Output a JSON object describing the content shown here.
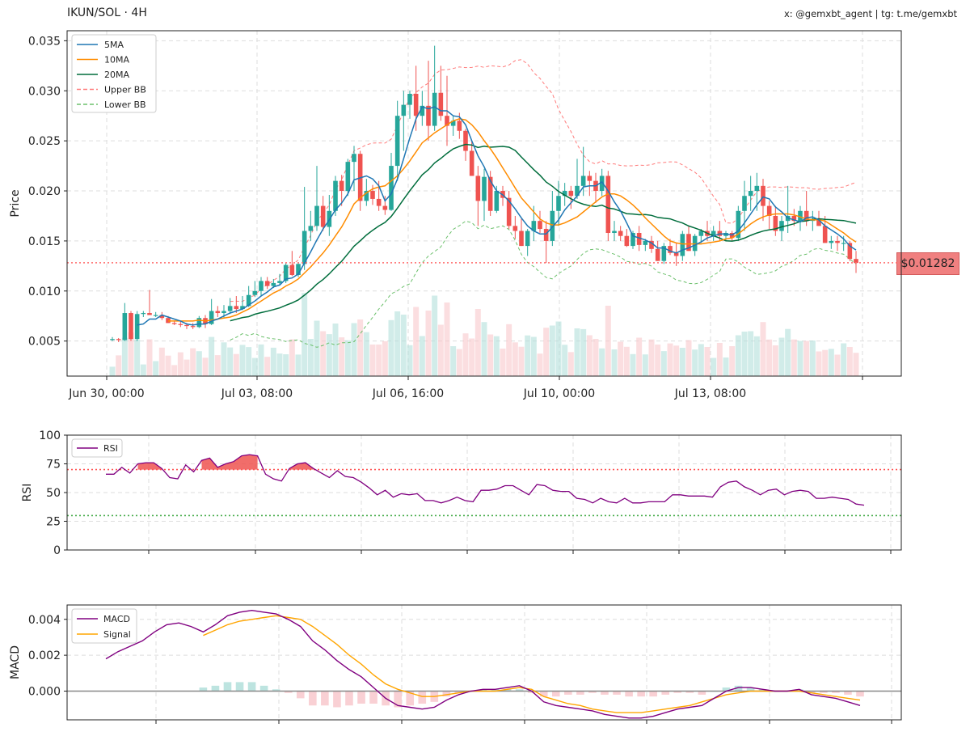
{
  "header": {
    "title": "IKUN/SOL · 4H",
    "credit": "x: @gemxbt_agent | tg: t.me/gemxbt"
  },
  "last_price_label": "$0.01282",
  "colors": {
    "up": "#26a69a",
    "down": "#ef5350",
    "ma5": "#1f77b4",
    "ma10": "#ff8c00",
    "ma20": "#006d3c",
    "upper_bb": "#ff7b7b",
    "lower_bb": "#6cc06c",
    "rsi": "#800080",
    "macd": "#800080",
    "signal": "#ffa500",
    "overbought": "#ff5555",
    "oversold": "#4caf50"
  },
  "chart_data": [
    {
      "type": "candlestick",
      "ylabel": "Price",
      "ylim": [
        0.0015,
        0.036
      ],
      "yticks": [
        "0.005",
        "0.010",
        "0.015",
        "0.020",
        "0.025",
        "0.030",
        "0.035"
      ],
      "xticks": [
        "Jun 30, 00:00",
        "Jul 03, 08:00",
        "Jul 06, 16:00",
        "Jul 10, 00:00",
        "Jul 13, 08:00"
      ],
      "legend": [
        "5MA",
        "10MA",
        "20MA",
        "Upper BB",
        "Lower BB"
      ],
      "last_price": 0.01282,
      "ohlc": [
        [
          0.0052,
          0.0054,
          0.005,
          0.0052
        ],
        [
          0.0052,
          0.0053,
          0.0049,
          0.0051
        ],
        [
          0.0051,
          0.0088,
          0.005,
          0.0078
        ],
        [
          0.0078,
          0.008,
          0.005,
          0.0052
        ],
        [
          0.0052,
          0.008,
          0.005,
          0.0077
        ],
        [
          0.0077,
          0.008,
          0.0074,
          0.0078
        ],
        [
          0.0078,
          0.0101,
          0.0076,
          0.0076
        ],
        [
          0.0076,
          0.0079,
          0.0074,
          0.0076
        ],
        [
          0.0076,
          0.0079,
          0.0071,
          0.0073
        ],
        [
          0.0073,
          0.0075,
          0.0068,
          0.0068
        ],
        [
          0.0068,
          0.007,
          0.0066,
          0.0067
        ],
        [
          0.0067,
          0.007,
          0.0064,
          0.0066
        ],
        [
          0.0066,
          0.0068,
          0.0062,
          0.0065
        ],
        [
          0.0065,
          0.0068,
          0.0062,
          0.0064
        ],
        [
          0.0064,
          0.0075,
          0.0063,
          0.0073
        ],
        [
          0.0073,
          0.0076,
          0.0063,
          0.0067
        ],
        [
          0.0067,
          0.0092,
          0.0066,
          0.008
        ],
        [
          0.008,
          0.0085,
          0.0074,
          0.0078
        ],
        [
          0.0078,
          0.0086,
          0.0073,
          0.008
        ],
        [
          0.008,
          0.0093,
          0.0077,
          0.0085
        ],
        [
          0.0085,
          0.0095,
          0.0078,
          0.0082
        ],
        [
          0.0082,
          0.0095,
          0.0081,
          0.0085
        ],
        [
          0.0085,
          0.0105,
          0.0084,
          0.0096
        ],
        [
          0.0096,
          0.011,
          0.0094,
          0.01
        ],
        [
          0.01,
          0.0114,
          0.0095,
          0.011
        ],
        [
          0.011,
          0.0114,
          0.0102,
          0.0105
        ],
        [
          0.0105,
          0.0112,
          0.0103,
          0.0108
        ],
        [
          0.0108,
          0.0117,
          0.0106,
          0.011
        ],
        [
          0.011,
          0.0128,
          0.0108,
          0.0126
        ],
        [
          0.0126,
          0.014,
          0.0115,
          0.0116
        ],
        [
          0.0116,
          0.0128,
          0.0114,
          0.0127
        ],
        [
          0.0127,
          0.0204,
          0.0121,
          0.016
        ],
        [
          0.016,
          0.018,
          0.015,
          0.0165
        ],
        [
          0.0165,
          0.0225,
          0.016,
          0.0185
        ],
        [
          0.0185,
          0.0195,
          0.016,
          0.0164
        ],
        [
          0.0164,
          0.0196,
          0.0155,
          0.018
        ],
        [
          0.018,
          0.0215,
          0.0175,
          0.021
        ],
        [
          0.021,
          0.0216,
          0.0185,
          0.02
        ],
        [
          0.02,
          0.0232,
          0.0195,
          0.0229
        ],
        [
          0.0229,
          0.0245,
          0.02,
          0.0237
        ],
        [
          0.0237,
          0.024,
          0.018,
          0.019
        ],
        [
          0.019,
          0.0212,
          0.0185,
          0.02
        ],
        [
          0.02,
          0.0206,
          0.0186,
          0.0192
        ],
        [
          0.0192,
          0.021,
          0.018,
          0.0185
        ],
        [
          0.0185,
          0.0195,
          0.0176,
          0.0181
        ],
        [
          0.0181,
          0.0238,
          0.018,
          0.0225
        ],
        [
          0.0225,
          0.029,
          0.021,
          0.0275
        ],
        [
          0.0275,
          0.03,
          0.024,
          0.0286
        ],
        [
          0.0286,
          0.03,
          0.0272,
          0.0297
        ],
        [
          0.0297,
          0.0325,
          0.026,
          0.0275
        ],
        [
          0.0275,
          0.03,
          0.0265,
          0.0285
        ],
        [
          0.0285,
          0.033,
          0.025,
          0.0265
        ],
        [
          0.0265,
          0.0345,
          0.026,
          0.0298
        ],
        [
          0.0298,
          0.0325,
          0.027,
          0.0275
        ],
        [
          0.0275,
          0.0315,
          0.0245,
          0.0265
        ],
        [
          0.0265,
          0.0275,
          0.0255,
          0.027
        ],
        [
          0.027,
          0.0278,
          0.0252,
          0.026
        ],
        [
          0.026,
          0.0262,
          0.023,
          0.024
        ],
        [
          0.024,
          0.025,
          0.0215,
          0.0215
        ],
        [
          0.0215,
          0.0225,
          0.0165,
          0.019
        ],
        [
          0.019,
          0.0222,
          0.017,
          0.0214
        ],
        [
          0.0214,
          0.022,
          0.0175,
          0.018
        ],
        [
          0.018,
          0.0205,
          0.0178,
          0.02
        ],
        [
          0.02,
          0.0205,
          0.0185,
          0.0193
        ],
        [
          0.0193,
          0.02,
          0.0162,
          0.0165
        ],
        [
          0.0165,
          0.0175,
          0.0152,
          0.016
        ],
        [
          0.016,
          0.0172,
          0.0145,
          0.0145
        ],
        [
          0.0145,
          0.0162,
          0.0135,
          0.016
        ],
        [
          0.016,
          0.0185,
          0.015,
          0.017
        ],
        [
          0.017,
          0.018,
          0.0158,
          0.0162
        ],
        [
          0.0162,
          0.017,
          0.0128,
          0.015
        ],
        [
          0.015,
          0.02,
          0.0145,
          0.018
        ],
        [
          0.018,
          0.021,
          0.0165,
          0.0195
        ],
        [
          0.0195,
          0.0208,
          0.0185,
          0.02
        ],
        [
          0.02,
          0.0205,
          0.0182,
          0.0195
        ],
        [
          0.0195,
          0.0232,
          0.0192,
          0.0205
        ],
        [
          0.0205,
          0.0244,
          0.0195,
          0.0215
        ],
        [
          0.0215,
          0.022,
          0.0195,
          0.021
        ],
        [
          0.021,
          0.0218,
          0.0188,
          0.02
        ],
        [
          0.02,
          0.0222,
          0.0195,
          0.0215
        ],
        [
          0.0215,
          0.022,
          0.015,
          0.0158
        ],
        [
          0.0158,
          0.017,
          0.015,
          0.016
        ],
        [
          0.016,
          0.0165,
          0.015,
          0.0155
        ],
        [
          0.0155,
          0.0162,
          0.0144,
          0.0145
        ],
        [
          0.0145,
          0.016,
          0.0142,
          0.0158
        ],
        [
          0.0158,
          0.0165,
          0.014,
          0.0146
        ],
        [
          0.0146,
          0.0152,
          0.014,
          0.015
        ],
        [
          0.015,
          0.0155,
          0.0138,
          0.0142
        ],
        [
          0.0142,
          0.015,
          0.013,
          0.013
        ],
        [
          0.013,
          0.0148,
          0.0127,
          0.0145
        ],
        [
          0.0145,
          0.0152,
          0.0136,
          0.0138
        ],
        [
          0.0138,
          0.0148,
          0.0125,
          0.0135
        ],
        [
          0.0135,
          0.016,
          0.013,
          0.0157
        ],
        [
          0.0157,
          0.0165,
          0.014,
          0.014
        ],
        [
          0.014,
          0.0157,
          0.0135,
          0.0155
        ],
        [
          0.0155,
          0.0162,
          0.0148,
          0.016
        ],
        [
          0.016,
          0.017,
          0.015,
          0.0155
        ],
        [
          0.0155,
          0.0165,
          0.015,
          0.016
        ],
        [
          0.016,
          0.017,
          0.015,
          0.0155
        ],
        [
          0.0155,
          0.016,
          0.015,
          0.0158
        ],
        [
          0.0158,
          0.016,
          0.015,
          0.0153
        ],
        [
          0.0153,
          0.0185,
          0.015,
          0.018
        ],
        [
          0.018,
          0.021,
          0.016,
          0.0195
        ],
        [
          0.0195,
          0.0215,
          0.018,
          0.02
        ],
        [
          0.02,
          0.0218,
          0.018,
          0.0205
        ],
        [
          0.0205,
          0.0212,
          0.017,
          0.0185
        ],
        [
          0.0185,
          0.019,
          0.0162,
          0.0175
        ],
        [
          0.0175,
          0.0185,
          0.0155,
          0.016
        ],
        [
          0.016,
          0.0175,
          0.015,
          0.017
        ],
        [
          0.017,
          0.0205,
          0.0158,
          0.0175
        ],
        [
          0.0175,
          0.0182,
          0.0165,
          0.017
        ],
        [
          0.017,
          0.0185,
          0.016,
          0.018
        ],
        [
          0.018,
          0.02,
          0.0165,
          0.017
        ],
        [
          0.017,
          0.018,
          0.016,
          0.0172
        ],
        [
          0.0172,
          0.018,
          0.0165,
          0.0165
        ],
        [
          0.0165,
          0.0175,
          0.0148,
          0.0148
        ],
        [
          0.0148,
          0.0155,
          0.0142,
          0.015
        ],
        [
          0.015,
          0.0155,
          0.014,
          0.0148
        ],
        [
          0.0148,
          0.0155,
          0.014,
          0.0148
        ],
        [
          0.0148,
          0.015,
          0.013,
          0.0132
        ],
        [
          0.0132,
          0.014,
          0.0118,
          0.0128
        ]
      ],
      "ma5": [
        null,
        null,
        null,
        null,
        0.0066,
        0.0067,
        0.0072,
        0.0072,
        0.0076,
        0.0074,
        0.0072,
        0.007,
        0.0067,
        0.0066,
        0.0067,
        0.0067,
        0.007,
        0.0072,
        0.0075,
        0.0078,
        0.008,
        0.0082,
        0.0086,
        0.009,
        0.0095,
        0.0099,
        0.0104,
        0.0106,
        0.0112,
        0.0113,
        0.0117,
        0.0128,
        0.0139,
        0.0151,
        0.0162,
        0.0171,
        0.0181,
        0.0188,
        0.0197,
        0.0211,
        0.0213,
        0.0215,
        0.0212,
        0.0205,
        0.019,
        0.0197,
        0.0212,
        0.0232,
        0.0253,
        0.0272,
        0.0284,
        0.0282,
        0.0284,
        0.028,
        0.028,
        0.0275,
        0.0274,
        0.0266,
        0.025,
        0.0235,
        0.0224,
        0.021,
        0.02,
        0.0196,
        0.019,
        0.0182,
        0.0173,
        0.0165,
        0.016,
        0.0157,
        0.0157,
        0.0164,
        0.0171,
        0.0181,
        0.0188,
        0.0195,
        0.0204,
        0.0205,
        0.0205,
        0.0209,
        0.02,
        0.0189,
        0.018,
        0.0168,
        0.0155,
        0.0153,
        0.0151,
        0.0148,
        0.0143,
        0.0143,
        0.014,
        0.0138,
        0.0141,
        0.0143,
        0.0146,
        0.0149,
        0.0153,
        0.0155,
        0.0157,
        0.0157,
        0.0156,
        0.016,
        0.0168,
        0.0177,
        0.0186,
        0.0194,
        0.0192,
        0.0184,
        0.0179,
        0.0173,
        0.0171,
        0.0169,
        0.0173,
        0.0174,
        0.0171,
        0.0165,
        0.0161,
        0.0157,
        0.0152,
        0.0145,
        0.0141
      ],
      "ma10": [
        null,
        null,
        null,
        null,
        null,
        null,
        null,
        null,
        null,
        0.007,
        0.007,
        0.007,
        0.007,
        0.007,
        0.0071,
        0.007,
        0.0071,
        0.0072,
        0.0073,
        0.0074,
        0.0076,
        0.0079,
        0.0082,
        0.0086,
        0.009,
        0.0094,
        0.0098,
        0.0101,
        0.0105,
        0.0108,
        0.0112,
        0.0118,
        0.0124,
        0.0131,
        0.0138,
        0.0146,
        0.0155,
        0.0164,
        0.0175,
        0.0187,
        0.0193,
        0.0198,
        0.0202,
        0.0204,
        0.0205,
        0.021,
        0.0215,
        0.0222,
        0.023,
        0.0239,
        0.0248,
        0.0253,
        0.0258,
        0.0262,
        0.0266,
        0.027,
        0.0272,
        0.0271,
        0.0266,
        0.0259,
        0.025,
        0.0242,
        0.0233,
        0.0223,
        0.0213,
        0.0203,
        0.0193,
        0.0186,
        0.0179,
        0.0172,
        0.0168,
        0.0166,
        0.0166,
        0.0168,
        0.0171,
        0.0174,
        0.0179,
        0.0184,
        0.0189,
        0.0194,
        0.0197,
        0.0197,
        0.0195,
        0.0191,
        0.0186,
        0.018,
        0.0173,
        0.0167,
        0.0161,
        0.0155,
        0.015,
        0.0148,
        0.0147,
        0.0147,
        0.0147,
        0.0147,
        0.0148,
        0.0149,
        0.015,
        0.0152,
        0.0153,
        0.0157,
        0.0162,
        0.0167,
        0.0171,
        0.0174,
        0.0176,
        0.0177,
        0.0177,
        0.0177,
        0.0176,
        0.0174,
        0.0172,
        0.0171,
        0.0171,
        0.017,
        0.0166,
        0.0162,
        0.0158,
        0.0153,
        0.0149
      ]
    },
    {
      "type": "line",
      "ylabel": "RSI",
      "ylim": [
        0,
        100
      ],
      "yticks": [
        "0",
        "25",
        "50",
        "75",
        "100"
      ],
      "legend": [
        "RSI"
      ],
      "overbought": 70,
      "oversold": 30,
      "values": [
        66,
        66,
        72,
        67,
        75,
        76,
        76,
        71,
        63,
        62,
        74,
        68,
        78,
        80,
        72,
        75,
        77,
        82,
        83,
        82,
        66,
        62,
        60,
        71,
        75,
        76,
        71,
        67,
        63,
        69,
        64,
        63,
        59,
        54,
        48,
        52,
        46,
        49,
        48,
        49,
        43,
        43,
        41,
        43,
        46,
        43,
        42,
        52,
        52,
        53,
        56,
        56,
        52,
        48,
        57,
        56,
        52,
        51,
        51,
        45,
        44,
        41,
        45,
        42,
        41,
        45,
        41,
        41,
        42,
        42,
        42,
        48,
        48,
        47,
        47,
        47,
        46,
        55,
        59,
        60,
        55,
        52,
        48,
        52,
        53,
        48,
        51,
        52,
        51,
        45,
        45,
        46,
        45,
        44,
        40,
        39
      ]
    },
    {
      "type": "line",
      "ylabel": "MACD",
      "ylim": [
        -0.0016,
        0.0048
      ],
      "yticks": [
        "0.000",
        "0.002",
        "0.004"
      ],
      "legend": [
        "MACD",
        "Signal"
      ],
      "macd": [
        0.0018,
        0.0022,
        0.0025,
        0.0028,
        0.0033,
        0.0037,
        0.0038,
        0.0036,
        0.0033,
        0.0037,
        0.0042,
        0.0044,
        0.0045,
        0.0044,
        0.0043,
        0.004,
        0.0036,
        0.0028,
        0.0023,
        0.0017,
        0.0012,
        0.0008,
        0.0002,
        -0.0004,
        -0.0008,
        -0.0009,
        -0.001,
        -0.0009,
        -0.0005,
        -0.0002,
        0.0,
        0.0001,
        0.0001,
        0.0002,
        0.0003,
        0.0,
        -0.0006,
        -0.0008,
        -0.0009,
        -0.001,
        -0.0011,
        -0.0013,
        -0.0014,
        -0.0015,
        -0.0015,
        -0.0014,
        -0.0012,
        -0.001,
        -0.0009,
        -0.0008,
        -0.0004,
        0.0,
        0.0002,
        0.0002,
        0.0001,
        0.0,
        0.0,
        0.0001,
        -0.0002,
        -0.0003,
        -0.0004,
        -0.0006,
        -0.0008
      ],
      "signal": [
        null,
        null,
        null,
        null,
        null,
        null,
        null,
        null,
        0.0031,
        0.0034,
        0.0037,
        0.0039,
        0.004,
        0.0041,
        0.0042,
        0.0041,
        0.004,
        0.0036,
        0.0031,
        0.0026,
        0.002,
        0.0015,
        0.0009,
        0.0004,
        0.0001,
        -0.0001,
        -0.0003,
        -0.0003,
        -0.0002,
        -0.0001,
        0.0,
        0.0,
        0.0,
        0.0001,
        0.0002,
        0.0001,
        -0.0003,
        -0.0005,
        -0.0007,
        -0.0008,
        -0.001,
        -0.0011,
        -0.0012,
        -0.0012,
        -0.0012,
        -0.0011,
        -0.001,
        -0.0009,
        -0.0008,
        -0.0006,
        -0.0004,
        -0.0002,
        -0.0001,
        0.0,
        0.0,
        0.0,
        0.0,
        0.0,
        -0.0001,
        -0.0002,
        -0.0003,
        -0.0004,
        -0.0005
      ]
    }
  ]
}
